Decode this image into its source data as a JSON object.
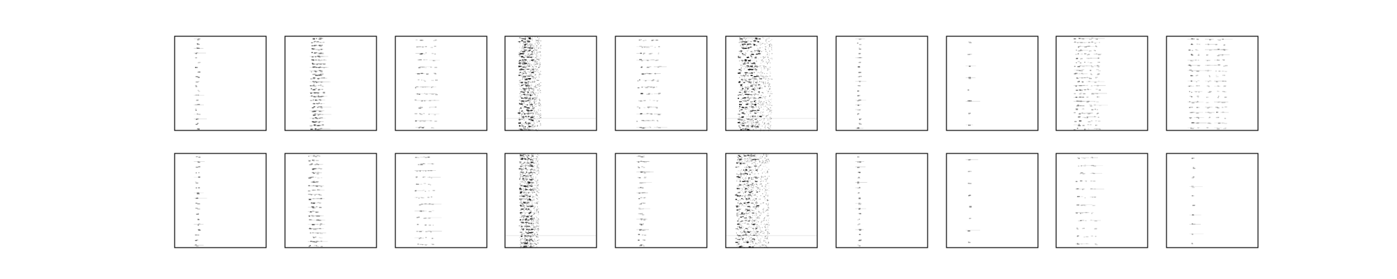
{
  "chart_data": {
    "type": "heatmap",
    "layout": {
      "rows": 2,
      "cols": 10
    },
    "colormap": "gray_r",
    "axes_ticks": "none",
    "title": "",
    "xlabel": "",
    "ylabel": "",
    "panels": [
      {
        "row": 0,
        "col": 0,
        "pattern": "column",
        "columns": [
          0.24
        ],
        "bands": 20,
        "density": 0.55,
        "spread": 0.02
      },
      {
        "row": 0,
        "col": 1,
        "pattern": "column",
        "columns": [
          0.3,
          0.33,
          0.36,
          0.39
        ],
        "bands": 26,
        "density": 0.75,
        "spread": 0.03
      },
      {
        "row": 0,
        "col": 2,
        "pattern": "column",
        "columns": [
          0.25,
          0.3,
          0.4
        ],
        "bands": 14,
        "density": 0.6,
        "spread": 0.04
      },
      {
        "row": 0,
        "col": 3,
        "pattern": "diffuse",
        "columns": [
          0.22
        ],
        "bands": 30,
        "density": 0.9,
        "spread": 0.08
      },
      {
        "row": 0,
        "col": 4,
        "pattern": "column",
        "columns": [
          0.26,
          0.33,
          0.38,
          0.45
        ],
        "bands": 14,
        "density": 0.6,
        "spread": 0.03
      },
      {
        "row": 0,
        "col": 5,
        "pattern": "diffuse",
        "columns": [
          0.25
        ],
        "bands": 30,
        "density": 1.0,
        "spread": 0.12
      },
      {
        "row": 0,
        "col": 6,
        "pattern": "column",
        "columns": [
          0.24
        ],
        "bands": 20,
        "density": 0.5,
        "spread": 0.015
      },
      {
        "row": 0,
        "col": 7,
        "pattern": "column",
        "columns": [
          0.24
        ],
        "bands": 8,
        "density": 0.5,
        "spread": 0.01
      },
      {
        "row": 0,
        "col": 8,
        "pattern": "column",
        "columns": [
          0.22,
          0.28,
          0.36,
          0.44
        ],
        "bands": 24,
        "density": 0.6,
        "spread": 0.03
      },
      {
        "row": 0,
        "col": 9,
        "pattern": "column",
        "columns": [
          0.26,
          0.33,
          0.45,
          0.55,
          0.62
        ],
        "bands": 18,
        "density": 0.55,
        "spread": 0.02
      },
      {
        "row": 1,
        "col": 0,
        "pattern": "column",
        "columns": [
          0.24
        ],
        "bands": 18,
        "density": 0.55,
        "spread": 0.02
      },
      {
        "row": 1,
        "col": 1,
        "pattern": "column",
        "columns": [
          0.28,
          0.32,
          0.36
        ],
        "bands": 22,
        "density": 0.65,
        "spread": 0.03
      },
      {
        "row": 1,
        "col": 2,
        "pattern": "column",
        "columns": [
          0.24,
          0.3,
          0.38
        ],
        "bands": 14,
        "density": 0.55,
        "spread": 0.03
      },
      {
        "row": 1,
        "col": 3,
        "pattern": "diffuse",
        "columns": [
          0.22
        ],
        "bands": 28,
        "density": 0.85,
        "spread": 0.07
      },
      {
        "row": 1,
        "col": 4,
        "pattern": "column",
        "columns": [
          0.26,
          0.3
        ],
        "bands": 18,
        "density": 0.55,
        "spread": 0.02
      },
      {
        "row": 1,
        "col": 5,
        "pattern": "diffuse",
        "columns": [
          0.22
        ],
        "bands": 26,
        "density": 0.9,
        "spread": 0.12
      },
      {
        "row": 1,
        "col": 6,
        "pattern": "column",
        "columns": [
          0.24
        ],
        "bands": 18,
        "density": 0.5,
        "spread": 0.015
      },
      {
        "row": 1,
        "col": 7,
        "pattern": "column",
        "columns": [
          0.24
        ],
        "bands": 8,
        "density": 0.45,
        "spread": 0.01
      },
      {
        "row": 1,
        "col": 8,
        "pattern": "column",
        "columns": [
          0.24,
          0.3,
          0.4
        ],
        "bands": 12,
        "density": 0.45,
        "spread": 0.03
      },
      {
        "row": 1,
        "col": 9,
        "pattern": "column",
        "columns": [
          0.28
        ],
        "bands": 10,
        "density": 0.45,
        "spread": 0.01
      }
    ]
  }
}
